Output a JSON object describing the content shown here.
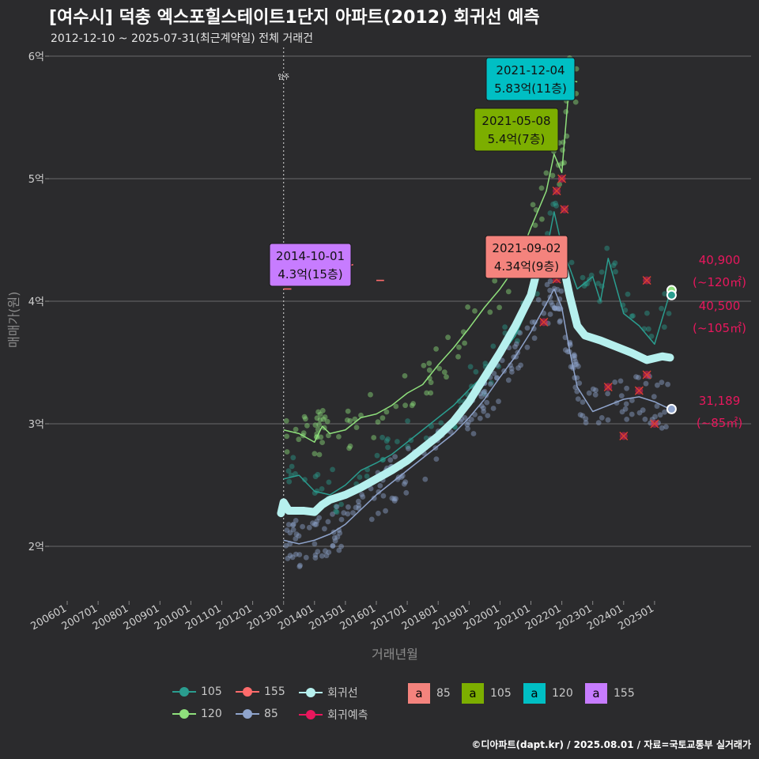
{
  "header": {
    "title": "[여수시] 덕충 엑스포힐스테이트1단지 아파트(2012) 회귀선 예측",
    "subtitle": "2012-12-10 ~ 2025-07-31(최근계약일) 전체 거래건"
  },
  "axes": {
    "xlabel": "거래년월",
    "ylabel": "매매가(원)",
    "yticks": [
      "2억",
      "3억",
      "4억",
      "5억",
      "6억"
    ],
    "xticks": [
      "200601",
      "200701",
      "200801",
      "200901",
      "201001",
      "201101",
      "201201",
      "201301",
      "201401",
      "201501",
      "201601",
      "201701",
      "201801",
      "201901",
      "202001",
      "202101",
      "202201",
      "202301",
      "202401",
      "202501"
    ]
  },
  "marker": {
    "label": "입주",
    "date": "2013-01"
  },
  "colors": {
    "s105": "#2a9d8f",
    "s120": "#8fe07c",
    "s155": "#ff6b6b",
    "s85": "#8fa4cc",
    "regression": "#b6f0ee",
    "forecast": "#e8175d",
    "box85": "#f4837d",
    "box105": "#7cae00",
    "box120": "#00bfc4",
    "box155": "#c77cff",
    "background": "#2b2b2d",
    "grid": "#6a6a6a"
  },
  "chart_data": {
    "type": "line",
    "title": "[여수시] 덕충 엑스포힐스테이트1단지 아파트(2012) 회귀선 예측",
    "xlabel": "거래년월",
    "ylabel": "매매가(원)",
    "ylim": [
      1.55,
      6.1
    ],
    "y_unit": "억",
    "xlim": [
      "2005-06",
      "2026-03"
    ],
    "series": [
      {
        "name": "회귀선",
        "points": [
          [
            "2012-12",
            2.27
          ],
          [
            "2013-01",
            2.36
          ],
          [
            "2013-03",
            2.29
          ],
          [
            "2013-09",
            2.29
          ],
          [
            "2014-01",
            2.28
          ],
          [
            "2014-04",
            2.34
          ],
          [
            "2014-07",
            2.38
          ],
          [
            "2015-01",
            2.42
          ],
          [
            "2015-07",
            2.48
          ],
          [
            "2016-01",
            2.55
          ],
          [
            "2016-07",
            2.62
          ],
          [
            "2017-01",
            2.7
          ],
          [
            "2017-07",
            2.8
          ],
          [
            "2018-01",
            2.9
          ],
          [
            "2018-07",
            3.02
          ],
          [
            "2019-01",
            3.18
          ],
          [
            "2019-07",
            3.38
          ],
          [
            "2020-01",
            3.58
          ],
          [
            "2020-07",
            3.8
          ],
          [
            "2021-01",
            4.05
          ],
          [
            "2021-04",
            4.3
          ],
          [
            "2021-07",
            4.45
          ],
          [
            "2021-10",
            4.48
          ],
          [
            "2022-01",
            4.35
          ],
          [
            "2022-04",
            4.05
          ],
          [
            "2022-07",
            3.8
          ],
          [
            "2022-10",
            3.72
          ],
          [
            "2023-04",
            3.68
          ],
          [
            "2023-10",
            3.63
          ],
          [
            "2024-04",
            3.58
          ],
          [
            "2024-10",
            3.52
          ],
          [
            "2025-04",
            3.55
          ],
          [
            "2025-07",
            3.54
          ]
        ]
      },
      {
        "name": "105",
        "points": [
          [
            "2013-01",
            2.55
          ],
          [
            "2013-07",
            2.58
          ],
          [
            "2014-01",
            2.45
          ],
          [
            "2014-07",
            2.42
          ],
          [
            "2015-01",
            2.5
          ],
          [
            "2015-07",
            2.62
          ],
          [
            "2016-01",
            2.68
          ],
          [
            "2016-07",
            2.75
          ],
          [
            "2017-01",
            2.85
          ],
          [
            "2017-07",
            2.95
          ],
          [
            "2018-01",
            3.05
          ],
          [
            "2018-07",
            3.15
          ],
          [
            "2019-01",
            3.28
          ],
          [
            "2019-07",
            3.4
          ],
          [
            "2020-01",
            3.55
          ],
          [
            "2020-07",
            3.72
          ],
          [
            "2021-01",
            4.0
          ],
          [
            "2021-07",
            4.4
          ],
          [
            "2021-10",
            4.73
          ],
          [
            "2022-01",
            4.45
          ],
          [
            "2022-07",
            4.1
          ],
          [
            "2023-01",
            4.2
          ],
          [
            "2023-04",
            4.0
          ],
          [
            "2023-07",
            4.35
          ],
          [
            "2024-01",
            3.9
          ],
          [
            "2024-07",
            3.8
          ],
          [
            "2025-01",
            3.65
          ],
          [
            "2025-07",
            4.07
          ]
        ]
      },
      {
        "name": "120",
        "points": [
          [
            "2013-01",
            2.95
          ],
          [
            "2013-07",
            2.92
          ],
          [
            "2014-01",
            2.85
          ],
          [
            "2014-04",
            2.98
          ],
          [
            "2014-07",
            2.92
          ],
          [
            "2015-01",
            2.95
          ],
          [
            "2015-07",
            3.05
          ],
          [
            "2016-01",
            3.08
          ],
          [
            "2016-07",
            3.15
          ],
          [
            "2017-01",
            3.25
          ],
          [
            "2017-07",
            3.32
          ],
          [
            "2018-01",
            3.48
          ],
          [
            "2018-07",
            3.62
          ],
          [
            "2019-01",
            3.78
          ],
          [
            "2019-07",
            3.95
          ],
          [
            "2020-01",
            4.1
          ],
          [
            "2020-07",
            4.28
          ],
          [
            "2021-01",
            4.6
          ],
          [
            "2021-07",
            4.9
          ],
          [
            "2021-10",
            5.2
          ],
          [
            "2022-01",
            5.05
          ],
          [
            "2022-04",
            5.8
          ],
          [
            "2022-07",
            5.79
          ]
        ]
      },
      {
        "name": "85",
        "points": [
          [
            "2013-01",
            2.05
          ],
          [
            "2013-07",
            2.02
          ],
          [
            "2014-01",
            2.05
          ],
          [
            "2014-07",
            2.1
          ],
          [
            "2015-01",
            2.18
          ],
          [
            "2015-07",
            2.3
          ],
          [
            "2016-01",
            2.42
          ],
          [
            "2016-07",
            2.52
          ],
          [
            "2017-01",
            2.62
          ],
          [
            "2017-07",
            2.72
          ],
          [
            "2018-01",
            2.82
          ],
          [
            "2018-07",
            2.92
          ],
          [
            "2019-01",
            3.05
          ],
          [
            "2019-07",
            3.2
          ],
          [
            "2020-01",
            3.38
          ],
          [
            "2020-07",
            3.55
          ],
          [
            "2021-01",
            3.75
          ],
          [
            "2021-07",
            3.98
          ],
          [
            "2021-10",
            4.1
          ],
          [
            "2022-01",
            3.95
          ],
          [
            "2022-04",
            3.6
          ],
          [
            "2022-07",
            3.3
          ],
          [
            "2023-01",
            3.1
          ],
          [
            "2023-07",
            3.15
          ],
          [
            "2024-01",
            3.2
          ],
          [
            "2024-07",
            3.22
          ],
          [
            "2025-01",
            3.18
          ],
          [
            "2025-07",
            3.12
          ]
        ]
      },
      {
        "name": "155",
        "points": [
          [
            "2013-01",
            4.1
          ],
          [
            "2013-04",
            4.1
          ],
          [
            "2014-10",
            4.25
          ],
          [
            "2015-04",
            4.3
          ],
          [
            "2016-01",
            4.17
          ],
          [
            "2016-04",
            4.17
          ]
        ]
      },
      {
        "name": "회귀예측",
        "points": [
          [
            "2021-06",
            3.83
          ],
          [
            "2021-11",
            4.18
          ],
          [
            "2021-11",
            4.9
          ],
          [
            "2022-01",
            5.0
          ],
          [
            "2022-02",
            4.75
          ],
          [
            "2023-07",
            3.3
          ],
          [
            "2024-01",
            2.9
          ],
          [
            "2024-07",
            3.27
          ],
          [
            "2024-10",
            3.4
          ],
          [
            "2025-01",
            3.0
          ],
          [
            "2024-10",
            4.17
          ]
        ]
      }
    ],
    "callouts": [
      {
        "date": "2021-12-04",
        "value": "5.83억(11층)",
        "size": "120"
      },
      {
        "date": "2021-05-08",
        "value": "5.4억(7층)",
        "size": "105"
      },
      {
        "date": "2014-10-01",
        "value": "4.3억(15층)",
        "size": "155"
      },
      {
        "date": "2021-09-02",
        "value": "4.34억(9층)",
        "size": "85"
      }
    ],
    "forecast_labels": [
      {
        "value": "40,900",
        "area": "(~120㎡)"
      },
      {
        "value": "40,500",
        "area": "(~105㎡)"
      },
      {
        "value": "31,189",
        "area": "(~85㎡)"
      }
    ],
    "legend": {
      "lines": [
        "105",
        "155",
        "회귀선",
        "120",
        "85",
        "회귀예측"
      ],
      "boxes": [
        {
          "glyph": "a",
          "label": "85"
        },
        {
          "glyph": "a",
          "label": "105"
        },
        {
          "glyph": "a",
          "label": "120"
        },
        {
          "glyph": "a",
          "label": "155"
        }
      ]
    }
  },
  "footer": {
    "credit": "©디아파트(dapt.kr) / 2025.08.01 / 자료=국토교통부 실거래가"
  }
}
